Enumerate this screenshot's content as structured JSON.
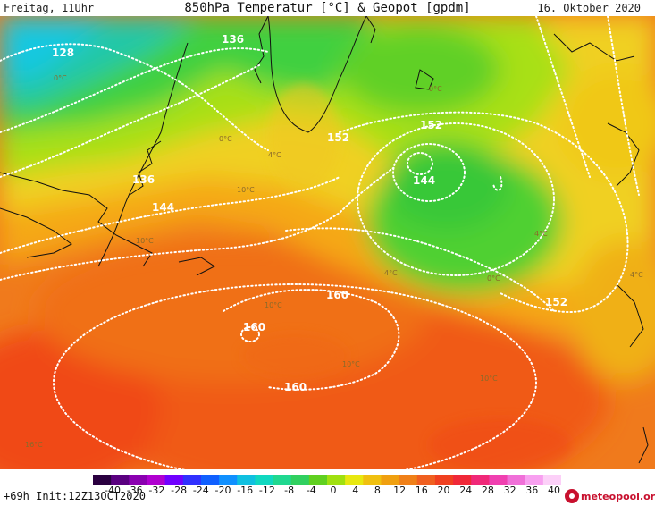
{
  "header": {
    "left": "Freitag, 11Uhr",
    "title": "850hPa Temperatur [°C] & Geopot [gpdm]",
    "right": "16. Oktober 2020"
  },
  "footer": {
    "init": "+69h  Init:12Z13OCT2020",
    "logo": "meteopool.org"
  },
  "colorbar": {
    "ticks": [
      "-40",
      "-36",
      "-32",
      "-28",
      "-24",
      "-20",
      "-16",
      "-12",
      "-8",
      "-4",
      "0",
      "4",
      "8",
      "12",
      "16",
      "20",
      "24",
      "28",
      "32",
      "36",
      "40"
    ],
    "colors": [
      "#2a0040",
      "#5a0080",
      "#8a00b0",
      "#b000d0",
      "#7000ff",
      "#3030ff",
      "#1060ff",
      "#1090ff",
      "#10c0e0",
      "#10d8c0",
      "#20d890",
      "#30d060",
      "#60d020",
      "#a0e010",
      "#e8e810",
      "#f0c010",
      "#f0a010",
      "#f08018",
      "#f06020",
      "#f04020",
      "#f02838",
      "#f02878",
      "#f040b0",
      "#f070d8",
      "#f8a0f0",
      "#fcd0f8"
    ]
  },
  "geopot_labels": [
    {
      "text": "128"
    },
    {
      "text": "136"
    },
    {
      "text": "136"
    },
    {
      "text": "144"
    },
    {
      "text": "152"
    },
    {
      "text": "152"
    },
    {
      "text": "144"
    },
    {
      "text": "152"
    },
    {
      "text": "160"
    },
    {
      "text": "160"
    },
    {
      "text": "160"
    }
  ],
  "temp_labels": [
    {
      "text": "0°C"
    },
    {
      "text": "0°C"
    },
    {
      "text": "4°C"
    },
    {
      "text": "4°C"
    },
    {
      "text": "4°C"
    },
    {
      "text": "10°C"
    },
    {
      "text": "10°C"
    },
    {
      "text": "10°C"
    },
    {
      "text": "10°C"
    },
    {
      "text": "10°C"
    },
    {
      "text": "16°C"
    },
    {
      "text": "0°C"
    },
    {
      "text": "0°C"
    },
    {
      "text": "4°C"
    }
  ],
  "colors": {
    "isoline": "#ffffff",
    "coast": "#111111"
  }
}
